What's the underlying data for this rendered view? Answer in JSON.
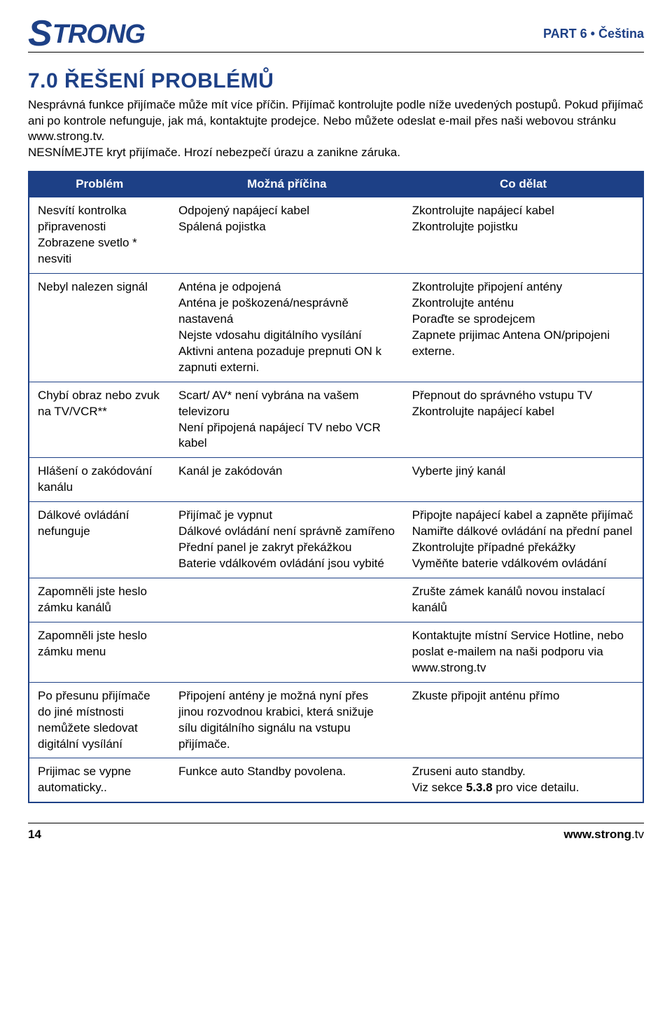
{
  "header": {
    "logo_brand": "STRONG",
    "part_tag": "PART 6 • Čeština"
  },
  "section": {
    "title": "7.0 ŘEŠENÍ PROBLÉMŮ",
    "intro": "Nesprávná funkce přijímače může mít více příčin. Přijímač kontrolujte podle níže uvedených postupů. Pokud přijímač ani po kontrole nefunguje, jak má, kontaktujte prodejce. Nebo můžete odeslat e-mail přes naši webovou stránku www.strong.tv.\nNESNÍMEJTE kryt přijímače. Hrozí nebezpečí úrazu a zanikne záruka."
  },
  "table": {
    "headers": [
      "Problém",
      "Možná příčina",
      "Co dělat"
    ],
    "rows": [
      {
        "problem": "Nesvítí kontrolka připravenosti\nZobrazene svetlo * nesviti",
        "cause": "Odpojený napájecí kabel\nSpálená pojistka",
        "action": "Zkontrolujte napájecí kabel\nZkontrolujte pojistku"
      },
      {
        "problem": "Nebyl nalezen signál",
        "cause": "Anténa je odpojená\nAnténa je poškozená/nesprávně nastavená\nNejste vdosahu digitálního vysílání\nAktivni antena pozaduje prepnuti ON k zapnuti externi.",
        "action": "Zkontrolujte připojení antény\nZkontrolujte anténu\nPoraďte se sprodejcem\nZapnete prijimac Antena ON/pripojeni externe."
      },
      {
        "problem": "Chybí obraz nebo zvuk na TV/VCR**",
        "cause": "Scart/ AV* není vybrána na vašem televizoru\nNení připojená napájecí TV nebo VCR kabel",
        "action": "Přepnout do správného vstupu TV\nZkontrolujte napájecí kabel"
      },
      {
        "problem": "Hlášení o zakódování kanálu",
        "cause": "Kanál je zakódován",
        "action": "Vyberte jiný kanál"
      },
      {
        "problem": "Dálkové ovládání nefunguje",
        "cause": "Přijímač je vypnut\nDálkové ovládání není správně zamířeno\nPřední panel je zakryt překážkou\nBaterie vdálkovém ovládání jsou vybité",
        "action": "Připojte napájecí kabel a zapněte přijímač\nNamiřte dálkové ovládání na přední panel\nZkontrolujte případné překážky\nVyměňte baterie vdálkovém ovládání"
      },
      {
        "problem": "Zapomněli jste heslo zámku kanálů",
        "cause": "",
        "action": "Zrušte zámek kanálů novou instalací kanálů"
      },
      {
        "problem": "Zapomněli jste heslo zámku menu",
        "cause": "",
        "action": "Kontaktujte místní Service Hotline, nebo poslat e-mailem na naši podporu via\nwww.strong.tv"
      },
      {
        "problem": "Po přesunu přijímače do jiné místnosti nemůžete sledovat digitální vysílání",
        "cause": "Připojení antény je možná nyní přes jinou rozvodnou krabici, která snižuje sílu digitálního signálu na vstupu přijímače.",
        "action": "Zkuste připojit anténu přímo"
      },
      {
        "problem": "Prijimac se vypne automaticky..",
        "cause": "Funkce auto Standby povolena.",
        "action_pre": "Zruseni auto standby.\nViz sekce ",
        "action_ref": "5.3.8",
        "action_post": " pro vice detailu."
      }
    ]
  },
  "footer": {
    "page_number": "14",
    "url_bold": "www.strong",
    "url_rest": ".tv"
  },
  "colors": {
    "brand_blue": "#1d4086",
    "text": "#000000",
    "background": "#ffffff"
  }
}
